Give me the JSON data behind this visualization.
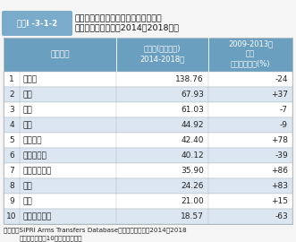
{
  "title_label": "図表Ⅰ -3-1-2",
  "title_line1": "アジア・大洋州における主要通常兵器",
  "title_line2": "の輸入額推移状況（2014～2018年）",
  "col1_header": "国・地域",
  "col2_line1": "輸入額(億米ドル)",
  "col2_line2": "2014-2018年",
  "col3_line1": "2009-2013年",
  "col3_line2": "との",
  "col3_line3": "輸入額の比較(%)",
  "rows": [
    [
      1,
      "インド",
      "138.76",
      "-24"
    ],
    [
      2,
      "豪州",
      "67.93",
      "+37"
    ],
    [
      3,
      "中国",
      "61.03",
      "-7"
    ],
    [
      4,
      "韓国",
      "44.92",
      "-9"
    ],
    [
      5,
      "ベトナム",
      "42.40",
      "+78"
    ],
    [
      6,
      "パキスタン",
      "40.12",
      "-39"
    ],
    [
      7,
      "インドネシア",
      "35.90",
      "+86"
    ],
    [
      8,
      "台湾",
      "24.26",
      "+83"
    ],
    [
      9,
      "日本",
      "21.00",
      "+15"
    ],
    [
      10,
      "シンガポール",
      "18.57",
      "-63"
    ]
  ],
  "note_line1": "（注）「SIPRI Arms Transfers Database」をもとに作成。2014～2018",
  "note_line2": "年の輸入額上位10ヶ国のみ表記。",
  "header_bg": "#6a9fc0",
  "header_text_color": "#ffffff",
  "title_label_bg": "#7aabca",
  "title_label_text_color": "#ffffff",
  "row_alt_bg": "#dce6f1",
  "row_bg": "#ffffff",
  "border_color": "#b0b8c0",
  "text_color": "#222222",
  "fig_bg": "#f5f5f5"
}
